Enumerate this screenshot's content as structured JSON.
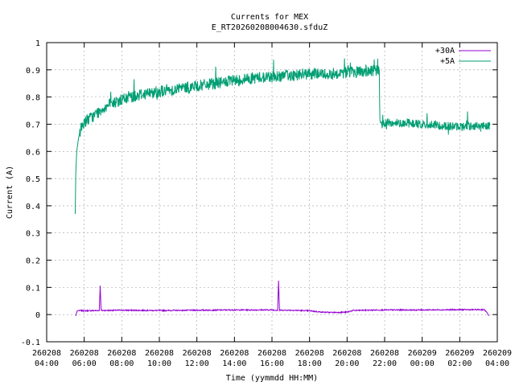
{
  "chart_data": {
    "type": "line",
    "title": "Currents for MEX",
    "subtitle": "E_RT20260208004630.sfduZ",
    "xlabel": "Time (yymmdd HH:MM)",
    "ylabel": "Current (A)",
    "ylim": [
      -0.1,
      1.0
    ],
    "yticks": [
      "-0.1",
      "0",
      "0.1",
      "0.2",
      "0.3",
      "0.4",
      "0.5",
      "0.6",
      "0.7",
      "0.8",
      "0.9",
      "1"
    ],
    "xlim_hours": [
      4,
      28
    ],
    "xticks": [
      {
        "date": "260208",
        "time": "04:00"
      },
      {
        "date": "260208",
        "time": "06:00"
      },
      {
        "date": "260208",
        "time": "08:00"
      },
      {
        "date": "260208",
        "time": "10:00"
      },
      {
        "date": "260208",
        "time": "12:00"
      },
      {
        "date": "260208",
        "time": "14:00"
      },
      {
        "date": "260208",
        "time": "16:00"
      },
      {
        "date": "260208",
        "time": "18:00"
      },
      {
        "date": "260208",
        "time": "20:00"
      },
      {
        "date": "260208",
        "time": "22:00"
      },
      {
        "date": "260209",
        "time": "00:00"
      },
      {
        "date": "260209",
        "time": "02:00"
      },
      {
        "date": "260209",
        "time": "04:00"
      }
    ],
    "grid": true,
    "legend_position": "top-right",
    "series": [
      {
        "name": "+30A",
        "color": "#9400d3",
        "x": [
          5.55,
          5.62,
          5.7,
          6.0,
          6.8,
          6.85,
          6.9,
          7.0,
          8.0,
          10.0,
          12.0,
          14.0,
          16.0,
          16.3,
          16.35,
          16.4,
          17.0,
          18.0,
          18.5,
          19.0,
          19.5,
          20.0,
          20.3,
          21.0,
          22.0,
          24.0,
          26.0,
          27.3,
          27.45,
          27.55
        ],
        "y": [
          -0.005,
          0.013,
          0.015,
          0.014,
          0.015,
          0.105,
          0.015,
          0.015,
          0.016,
          0.015,
          0.016,
          0.017,
          0.017,
          0.016,
          0.125,
          0.016,
          0.016,
          0.014,
          0.01,
          0.008,
          0.008,
          0.009,
          0.015,
          0.016,
          0.017,
          0.017,
          0.018,
          0.018,
          0.008,
          -0.005
        ]
      },
      {
        "name": "+5A",
        "color": "#009e73",
        "x": [
          5.52,
          5.55,
          5.6,
          5.7,
          5.8,
          6.0,
          6.5,
          7.0,
          8.0,
          9.0,
          10.0,
          11.0,
          12.0,
          13.0,
          14.0,
          15.0,
          16.0,
          17.0,
          18.0,
          19.0,
          20.0,
          21.0,
          21.7,
          21.75,
          21.85,
          22.0,
          23.0,
          24.0,
          25.0,
          26.0,
          27.0,
          27.6
        ],
        "y": [
          0.37,
          0.52,
          0.6,
          0.65,
          0.68,
          0.71,
          0.73,
          0.76,
          0.79,
          0.81,
          0.82,
          0.83,
          0.84,
          0.85,
          0.86,
          0.87,
          0.875,
          0.88,
          0.885,
          0.885,
          0.89,
          0.895,
          0.895,
          0.72,
          0.7,
          0.705,
          0.705,
          0.7,
          0.695,
          0.69,
          0.695,
          0.695
        ]
      }
    ]
  }
}
